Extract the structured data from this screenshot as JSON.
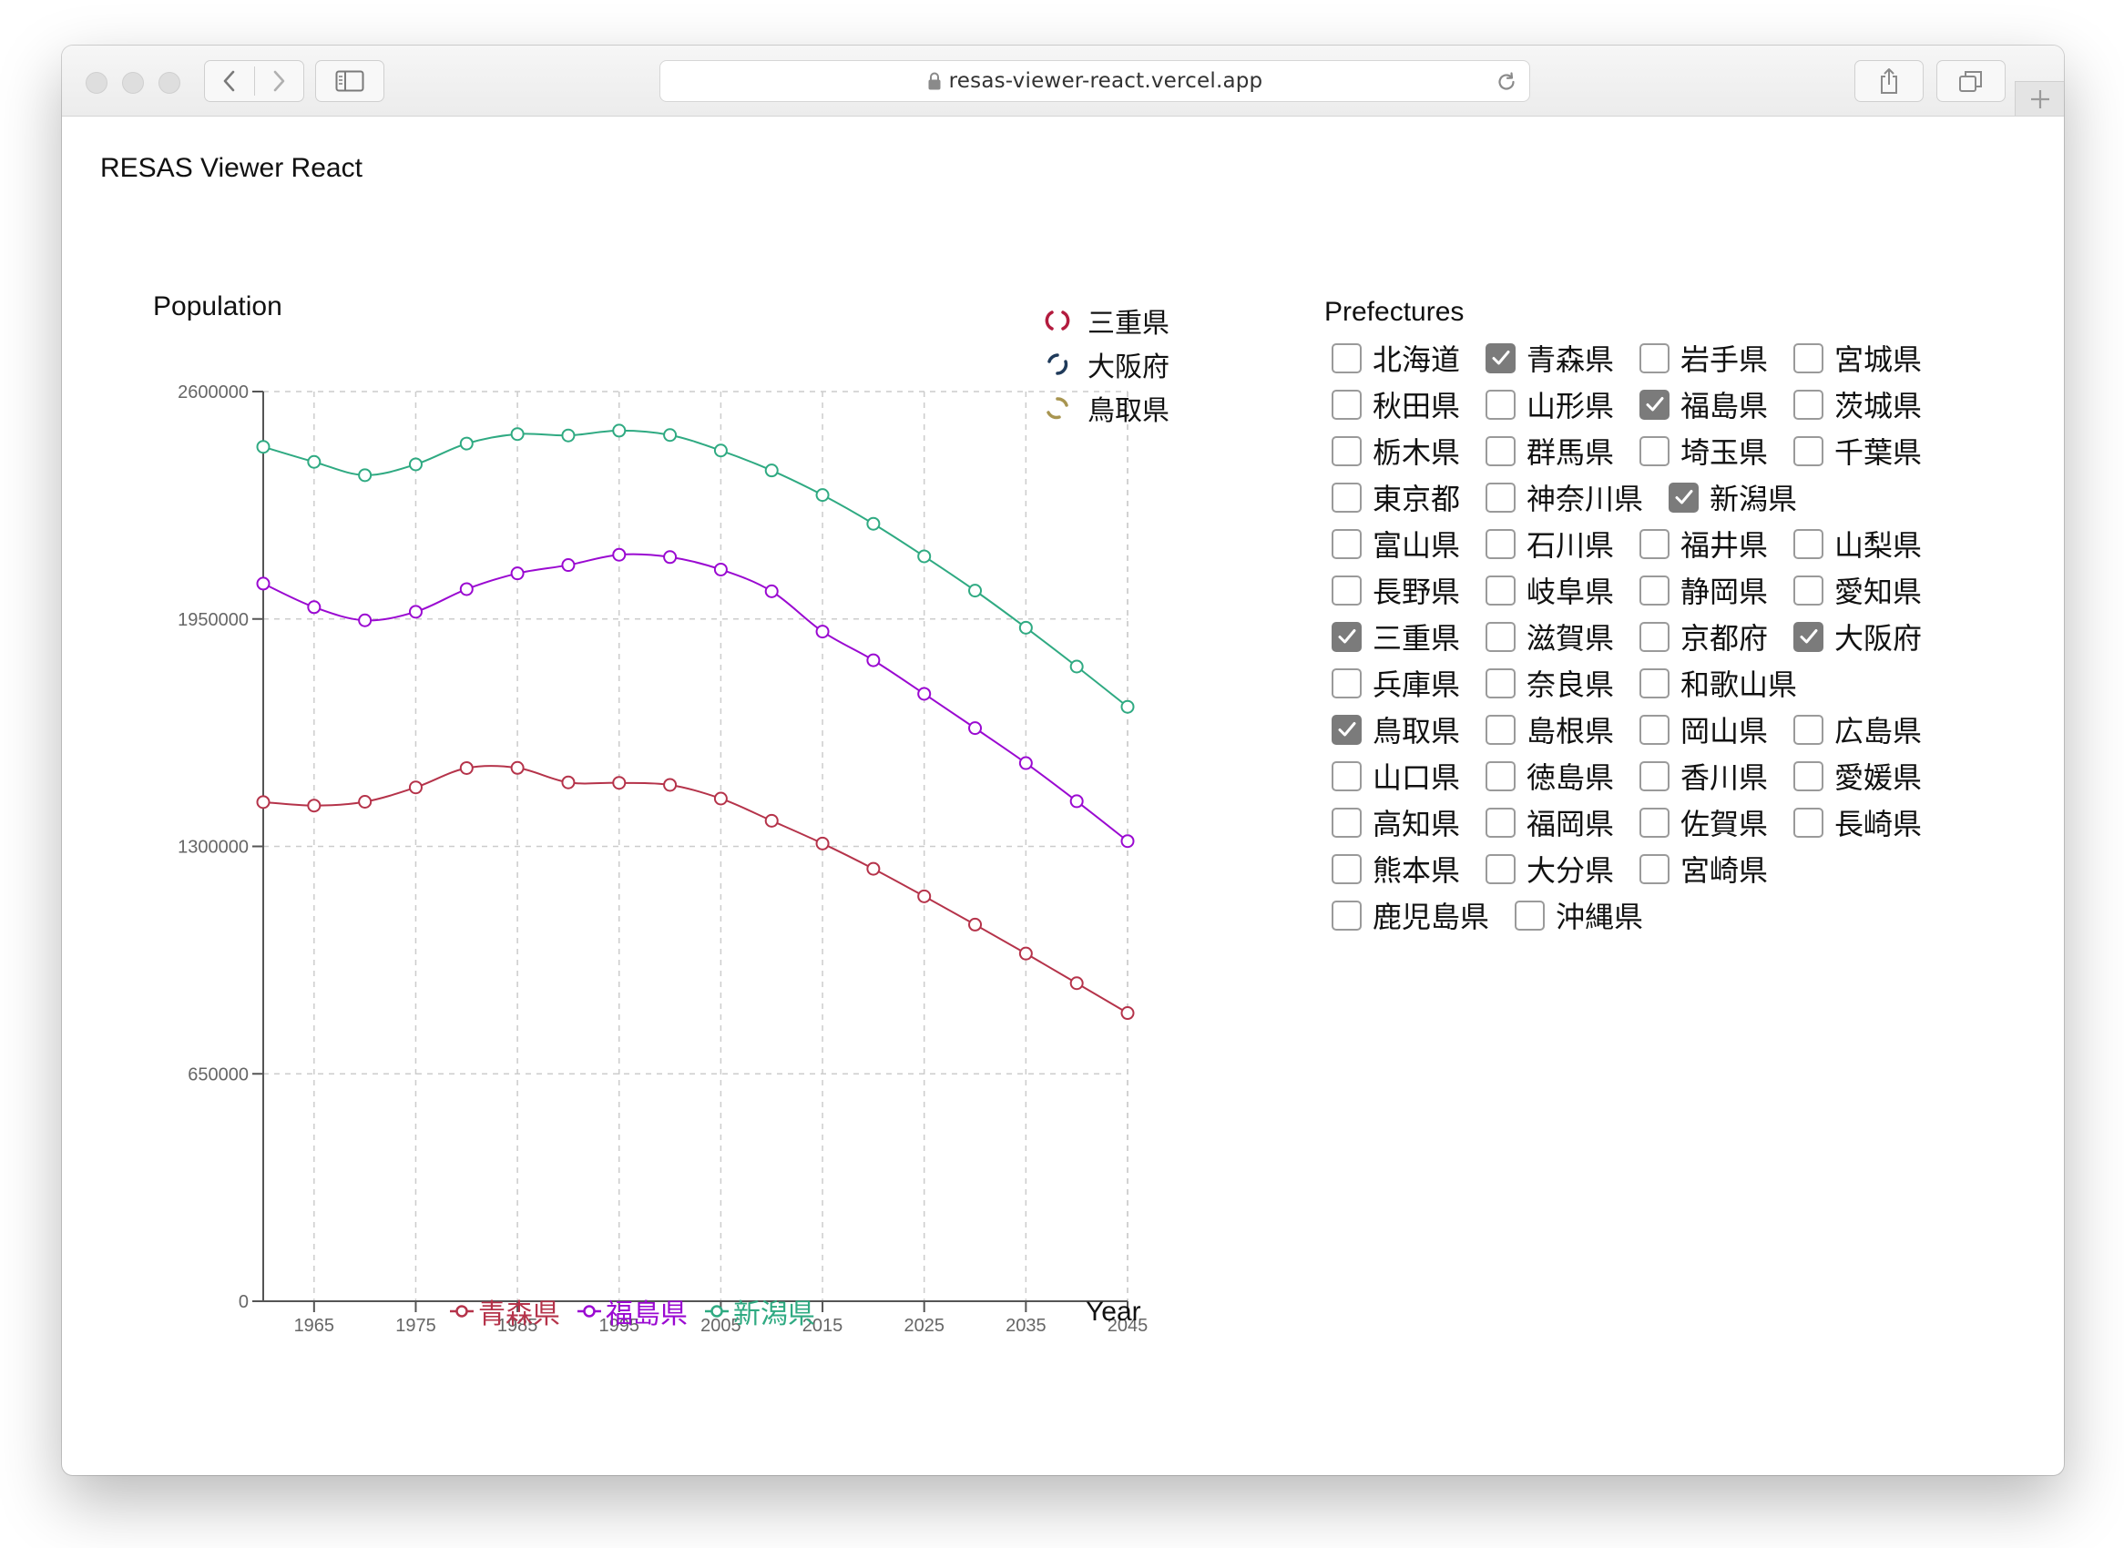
{
  "browser": {
    "url": "resas-viewer-react.vercel.app",
    "icons": {
      "back": "chevron-left-icon",
      "forward": "chevron-right-icon",
      "sidebar": "sidebar-icon",
      "lock": "lock-icon",
      "reload": "reload-icon",
      "share": "share-icon",
      "tabs": "tabs-icon",
      "new_tab": "plus-icon"
    }
  },
  "app": {
    "title": "RESAS Viewer React",
    "prefectures_title": "Prefectures",
    "loading_legend": [
      {
        "label": "三重県",
        "color": "#b31b3e"
      },
      {
        "label": "大阪府",
        "color": "#1f3a5a"
      },
      {
        "label": "鳥取県",
        "color": "#a89550"
      }
    ],
    "prefectures": [
      [
        {
          "label": "北海道",
          "checked": false
        },
        {
          "label": "青森県",
          "checked": true
        },
        {
          "label": "岩手県",
          "checked": false
        },
        {
          "label": "宮城県",
          "checked": false
        }
      ],
      [
        {
          "label": "秋田県",
          "checked": false
        },
        {
          "label": "山形県",
          "checked": false
        },
        {
          "label": "福島県",
          "checked": true
        },
        {
          "label": "茨城県",
          "checked": false
        }
      ],
      [
        {
          "label": "栃木県",
          "checked": false
        },
        {
          "label": "群馬県",
          "checked": false
        },
        {
          "label": "埼玉県",
          "checked": false
        },
        {
          "label": "千葉県",
          "checked": false
        }
      ],
      [
        {
          "label": "東京都",
          "checked": false
        },
        {
          "label": "神奈川県",
          "checked": false
        },
        {
          "label": "新潟県",
          "checked": true
        }
      ],
      [
        {
          "label": "富山県",
          "checked": false
        },
        {
          "label": "石川県",
          "checked": false
        },
        {
          "label": "福井県",
          "checked": false
        },
        {
          "label": "山梨県",
          "checked": false
        }
      ],
      [
        {
          "label": "長野県",
          "checked": false
        },
        {
          "label": "岐阜県",
          "checked": false
        },
        {
          "label": "静岡県",
          "checked": false
        },
        {
          "label": "愛知県",
          "checked": false
        }
      ],
      [
        {
          "label": "三重県",
          "checked": true
        },
        {
          "label": "滋賀県",
          "checked": false
        },
        {
          "label": "京都府",
          "checked": false
        },
        {
          "label": "大阪府",
          "checked": true
        }
      ],
      [
        {
          "label": "兵庫県",
          "checked": false
        },
        {
          "label": "奈良県",
          "checked": false
        },
        {
          "label": "和歌山県",
          "checked": false
        }
      ],
      [
        {
          "label": "鳥取県",
          "checked": true
        },
        {
          "label": "島根県",
          "checked": false
        },
        {
          "label": "岡山県",
          "checked": false
        },
        {
          "label": "広島県",
          "checked": false
        }
      ],
      [
        {
          "label": "山口県",
          "checked": false
        },
        {
          "label": "徳島県",
          "checked": false
        },
        {
          "label": "香川県",
          "checked": false
        },
        {
          "label": "愛媛県",
          "checked": false
        }
      ],
      [
        {
          "label": "高知県",
          "checked": false
        },
        {
          "label": "福岡県",
          "checked": false
        },
        {
          "label": "佐賀県",
          "checked": false
        },
        {
          "label": "長崎県",
          "checked": false
        }
      ],
      [
        {
          "label": "熊本県",
          "checked": false
        },
        {
          "label": "大分県",
          "checked": false
        },
        {
          "label": "宮崎県",
          "checked": false
        }
      ],
      [
        {
          "label": "鹿児島県",
          "checked": false
        },
        {
          "label": "沖縄県",
          "checked": false
        }
      ]
    ]
  },
  "chart_data": {
    "type": "line",
    "xlabel": "Year",
    "ylabel": "Population",
    "xlim": [
      1960,
      2045
    ],
    "ylim": [
      0,
      2600000
    ],
    "yticks": [
      "0",
      "650000",
      "1300000",
      "1950000",
      "2600000"
    ],
    "xticks": [
      "1965",
      "1975",
      "1985",
      "1995",
      "2005",
      "2015",
      "2025",
      "2035",
      "2045"
    ],
    "grid": true,
    "legend_position": "bottom",
    "x": [
      1960,
      1965,
      1970,
      1975,
      1980,
      1985,
      1990,
      1995,
      2000,
      2005,
      2010,
      2015,
      2020,
      2025,
      2030,
      2035,
      2040,
      2045
    ],
    "series": [
      {
        "name": "青森県",
        "color": "#b5334a",
        "values": [
          1426606,
          1416591,
          1427520,
          1468646,
          1523907,
          1524448,
          1482873,
          1481663,
          1475728,
          1436657,
          1373339,
          1308265,
          1235971,
          1157332,
          1076393,
          993737,
          908974,
          823610
        ]
      },
      {
        "name": "福島県",
        "color": "#9a09d1",
        "values": [
          2051137,
          1983754,
          1946077,
          1970616,
          2035272,
          2080304,
          2104058,
          2133592,
          2126935,
          2091319,
          2029064,
          1914039,
          1832000,
          1736000,
          1638000,
          1538000,
          1429000,
          1315000
        ]
      },
      {
        "name": "新潟県",
        "color": "#2faa82",
        "values": [
          2442037,
          2398931,
          2360982,
          2391938,
          2451357,
          2478470,
          2474583,
          2488364,
          2475733,
          2431459,
          2374450,
          2304264,
          2222000,
          2129000,
          2031000,
          1925000,
          1814000,
          1699000
        ]
      }
    ]
  }
}
